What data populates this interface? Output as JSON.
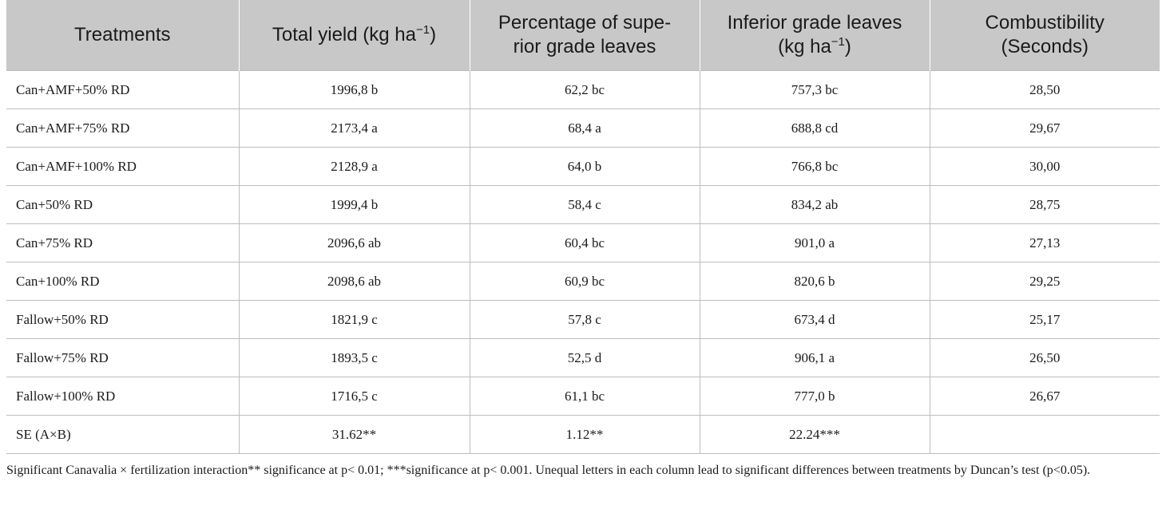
{
  "table": {
    "headers": [
      {
        "text": "Treatments",
        "sup": ""
      },
      {
        "text": "Total yield (kg ha",
        "sup": "−1",
        "suffix": ")"
      },
      {
        "text": "Percentage of supe-\nrior grade leaves",
        "sup": ""
      },
      {
        "text": "Inferior grade leaves\n(kg ha",
        "sup": "−1",
        "suffix": ")"
      },
      {
        "text": "Combustibility\n(Seconds)",
        "sup": ""
      }
    ],
    "rows": [
      [
        "Can+AMF+50% RD",
        "1996,8 b",
        "62,2 bc",
        "757,3 bc",
        "28,50"
      ],
      [
        "Can+AMF+75% RD",
        "2173,4 a",
        "68,4 a",
        "688,8 cd",
        "29,67"
      ],
      [
        "Can+AMF+100% RD",
        "2128,9 a",
        "64,0 b",
        "766,8 bc",
        "30,00"
      ],
      [
        "Can+50% RD",
        "1999,4 b",
        "58,4 c",
        "834,2 ab",
        "28,75"
      ],
      [
        "Can+75% RD",
        "2096,6 ab",
        "60,4 bc",
        "901,0 a",
        "27,13"
      ],
      [
        "Can+100% RD",
        "2098,6 ab",
        "60,9 bc",
        "820,6 b",
        "29,25"
      ],
      [
        "Fallow+50% RD",
        "1821,9 c",
        "57,8 c",
        "673,4 d",
        "25,17"
      ],
      [
        "Fallow+75% RD",
        "1893,5 c",
        "52,5 d",
        "906,1 a",
        "26,50"
      ],
      [
        "Fallow+100% RD",
        "1716,5 c",
        "61,1 bc",
        "777,0 b",
        "26,67"
      ],
      [
        "SE (A×B)",
        "31.62**",
        "1.12**",
        "22.24***",
        ""
      ]
    ]
  },
  "footnote": "Significant Canavalia × fertilization interaction** significance at p< 0.01; ***significance at p< 0.001. Unequal letters in each column lead to significant differences between treatments by Duncan’s test (p<0.05).",
  "colors": {
    "header_bg": "#c8c8c8",
    "grid": "#bdbdbd"
  }
}
